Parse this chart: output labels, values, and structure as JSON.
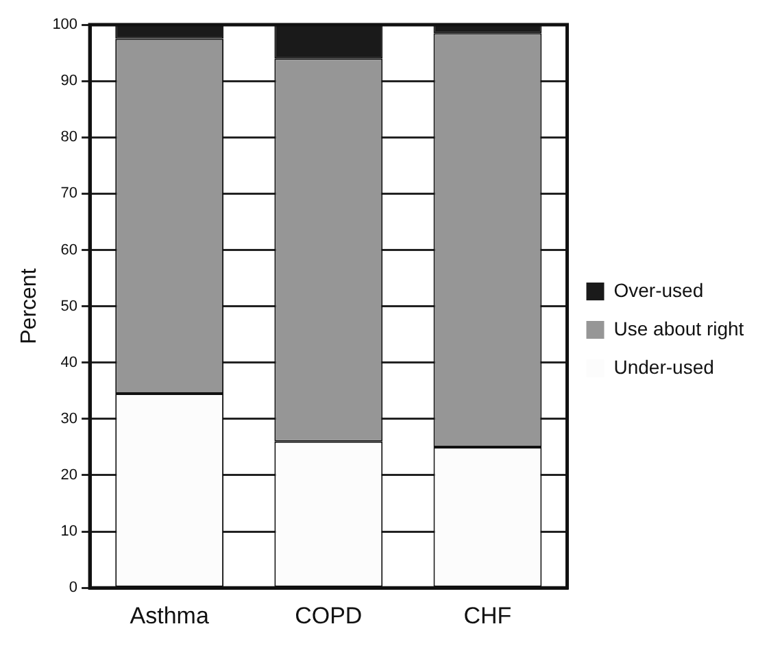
{
  "chart_data": {
    "type": "bar",
    "stacked": true,
    "ylabel": "Percent",
    "categories": [
      "Asthma",
      "COPD",
      "CHF"
    ],
    "series": [
      {
        "name": "Under-used",
        "color": "#fcfcfc",
        "values": [
          34.5,
          26,
          25
        ]
      },
      {
        "name": "Use about right",
        "color": "#969696",
        "values": [
          63,
          68,
          73.5
        ]
      },
      {
        "name": "Over-used",
        "color": "#1a1a1a",
        "values": [
          2.5,
          6,
          1.5
        ]
      }
    ],
    "ylim": [
      0,
      100
    ],
    "yticks": [
      0,
      10,
      20,
      30,
      40,
      50,
      60,
      70,
      80,
      90,
      100
    ],
    "grid": "y",
    "legend": "right"
  }
}
